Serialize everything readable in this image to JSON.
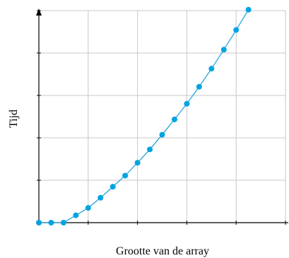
{
  "chart_data": {
    "type": "line",
    "title": "",
    "xlabel": "Grootte van de array",
    "ylabel": "Tijd",
    "x": [
      0,
      1,
      2,
      3,
      4,
      5,
      6,
      7,
      8,
      9,
      10,
      11,
      12,
      13,
      14,
      15,
      16,
      17
    ],
    "series": [
      {
        "values": [
          0,
          0,
          0,
          0.4,
          0.8,
          1.35,
          1.95,
          2.55,
          3.25,
          3.97,
          4.77,
          5.6,
          6.45,
          7.37,
          8.35,
          9.38,
          10.45,
          11.55
        ]
      }
    ],
    "xlim": [
      0,
      20
    ],
    "ylim": [
      0,
      11.5
    ],
    "grid": true,
    "legend": "none",
    "colors": {
      "line": "#1aa0d8",
      "marker": "#00a3e0",
      "grid": "#c8c8c8",
      "axis": "#000000"
    }
  }
}
